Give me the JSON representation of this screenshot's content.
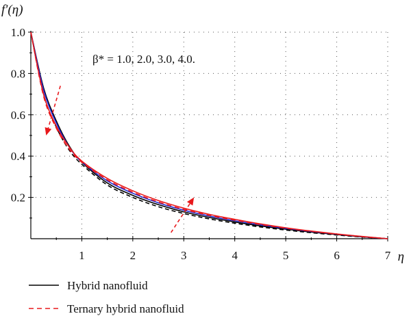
{
  "chart_data": {
    "type": "line",
    "ylabel": "f′(η)",
    "xlabel": "η",
    "annotation": "β* = 1.0, 2.0, 3.0, 4.0.",
    "xlim": [
      0,
      7
    ],
    "ylim": [
      0,
      1.0
    ],
    "xticks": [
      "1",
      "2",
      "3",
      "4",
      "5",
      "6",
      "7"
    ],
    "yticks": [
      "0.2",
      "0.4",
      "0.6",
      "0.8",
      "1.0"
    ],
    "grid": true,
    "legend_position": "bottom-left",
    "legend": [
      {
        "label": "Hybrid nanofluid",
        "style": "solid",
        "color": "#000000"
      },
      {
        "label": "Ternary hybrid nanofluid",
        "style": "dashed",
        "color": "#e8191c"
      }
    ],
    "x": [
      0,
      0.25,
      0.5,
      0.75,
      1,
      1.5,
      2,
      2.5,
      3,
      3.5,
      4,
      4.5,
      5,
      5.5,
      6,
      6.5,
      7
    ],
    "series": [
      {
        "family": "Hybrid nanofluid",
        "color": "#000000",
        "dash": "6,4",
        "values": [
          1.0,
          0.7,
          0.54,
          0.43,
          0.36,
          0.26,
          0.2,
          0.155,
          0.122,
          0.096,
          0.075,
          0.057,
          0.042,
          0.029,
          0.018,
          0.008,
          0.0
        ]
      },
      {
        "family": "Hybrid nanofluid",
        "color": "#000000",
        "dash": "",
        "values": [
          1.0,
          0.73,
          0.57,
          0.45,
          0.37,
          0.27,
          0.21,
          0.165,
          0.13,
          0.103,
          0.081,
          0.062,
          0.046,
          0.032,
          0.02,
          0.009,
          0.0
        ]
      },
      {
        "family": "Hybrid nanofluid",
        "color": "#1f2bd6",
        "dash": "",
        "values": [
          1.0,
          0.72,
          0.56,
          0.445,
          0.372,
          0.28,
          0.22,
          0.174,
          0.138,
          0.11,
          0.087,
          0.067,
          0.05,
          0.035,
          0.022,
          0.01,
          0.0
        ]
      },
      {
        "family": "Ternary hybrid nanofluid",
        "color": "#e8191c",
        "dash": "7,5",
        "values": [
          1.0,
          0.69,
          0.535,
          0.435,
          0.37,
          0.285,
          0.225,
          0.178,
          0.142,
          0.113,
          0.09,
          0.069,
          0.051,
          0.036,
          0.022,
          0.01,
          0.0
        ]
      },
      {
        "family": "Ternary hybrid nanofluid",
        "color": "#e8191c",
        "dash": "",
        "values": [
          1.0,
          0.7,
          0.545,
          0.445,
          0.376,
          0.292,
          0.232,
          0.185,
          0.148,
          0.118,
          0.094,
          0.072,
          0.053,
          0.037,
          0.023,
          0.011,
          0.0
        ]
      }
    ],
    "arrows": [
      {
        "from": [
          0.58,
          0.74
        ],
        "to": [
          0.3,
          0.5
        ],
        "color": "#e8191c"
      },
      {
        "from": [
          2.75,
          0.03
        ],
        "to": [
          3.2,
          0.2
        ],
        "color": "#e8191c"
      }
    ]
  }
}
